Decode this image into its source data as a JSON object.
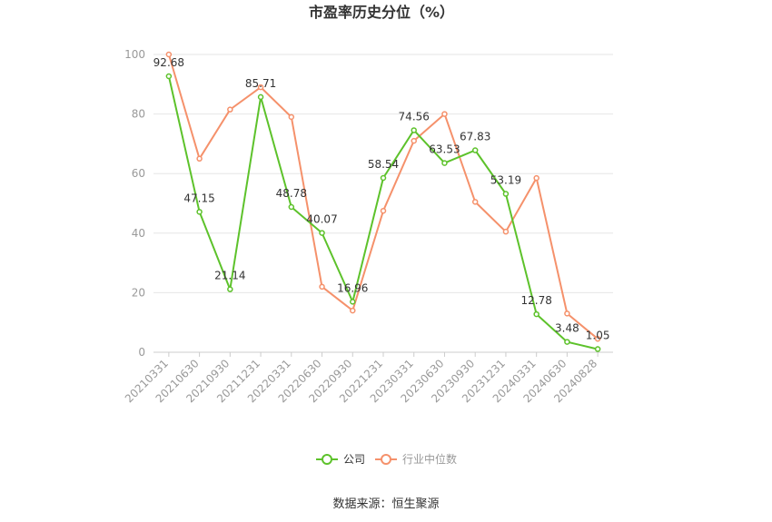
{
  "chart_data": {
    "type": "line",
    "title": "市盈率历史分位（%）",
    "categories": [
      "20210331",
      "20210630",
      "20210930",
      "20211231",
      "20220331",
      "20220630",
      "20220930",
      "20221231",
      "20230331",
      "20230630",
      "20230930",
      "20231231",
      "20240331",
      "20240630",
      "20240828"
    ],
    "ylim": [
      0,
      100
    ],
    "yticks": [
      0,
      20,
      40,
      60,
      80,
      100
    ],
    "grid": true,
    "legend_position": "bottom",
    "series": [
      {
        "name": "公司",
        "color": "#5dc22b",
        "values": [
          92.68,
          47.15,
          21.14,
          85.71,
          48.78,
          40.07,
          16.96,
          58.54,
          74.56,
          63.53,
          67.83,
          53.19,
          12.78,
          3.48,
          1.05
        ],
        "labels": [
          "92.68",
          "47.15",
          "21.14",
          "85.71",
          "48.78",
          "40.07",
          "16.96",
          "58.54",
          "74.56",
          "63.53",
          "67.83",
          "53.19",
          "12.78",
          "3.48",
          "1.05"
        ]
      },
      {
        "name": "行业中位数",
        "color": "#f5916b",
        "values": [
          100,
          65,
          81.5,
          89,
          79,
          22,
          14,
          47.5,
          71,
          80,
          50.5,
          40.5,
          58.5,
          13,
          4.5
        ]
      }
    ],
    "source": "数据来源：恒生聚源"
  }
}
